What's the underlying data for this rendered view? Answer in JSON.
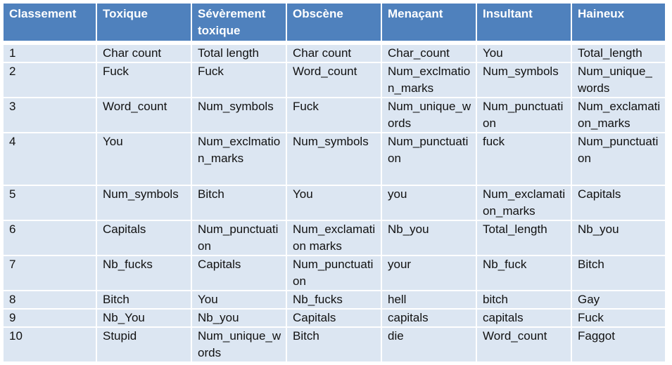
{
  "table": {
    "header": [
      "Classement",
      "Toxique",
      "Sévèrement toxique",
      "Obscène",
      "Menaçant",
      "Insultant",
      "Haineux"
    ],
    "rows": [
      [
        "1",
        "Char count",
        "Total length",
        "Char count",
        "Char_count",
        "You",
        "Total_length"
      ],
      [
        "2",
        "Fuck",
        "Fuck",
        "Word_count",
        "Num_exclmation_marks",
        "Num_symbols",
        "Num_unique_words"
      ],
      [
        "3",
        "Word_count",
        "Num_symbols",
        "Fuck",
        "Num_unique_words",
        "Num_punctuation",
        "Num_exclamation_marks"
      ],
      [
        "4",
        "You",
        "Num_exclmation_marks",
        "Num_symbols",
        "Num_punctuation",
        "fuck",
        "Num_punctuation"
      ],
      [
        "5",
        "Num_symbols",
        "Bitch",
        "You",
        "you",
        "Num_exclamation_marks",
        "Capitals"
      ],
      [
        "6",
        "Capitals",
        "Num_punctuation",
        "Num_exclamation marks",
        "Nb_you",
        "Total_length",
        "Nb_you"
      ],
      [
        "7",
        "Nb_fucks",
        "Capitals",
        "Num_punctuation",
        "your",
        "Nb_fuck",
        "Bitch"
      ],
      [
        "8",
        "Bitch",
        "You",
        "Nb_fucks",
        "hell",
        "bitch",
        "Gay"
      ],
      [
        "9",
        "Nb_You",
        "Nb_you",
        "Capitals",
        "capitals",
        "capitals",
        "Fuck"
      ],
      [
        "10",
        "Stupid",
        "Num_unique_words",
        "Bitch",
        "die",
        "Word_count",
        "Faggot"
      ]
    ]
  }
}
